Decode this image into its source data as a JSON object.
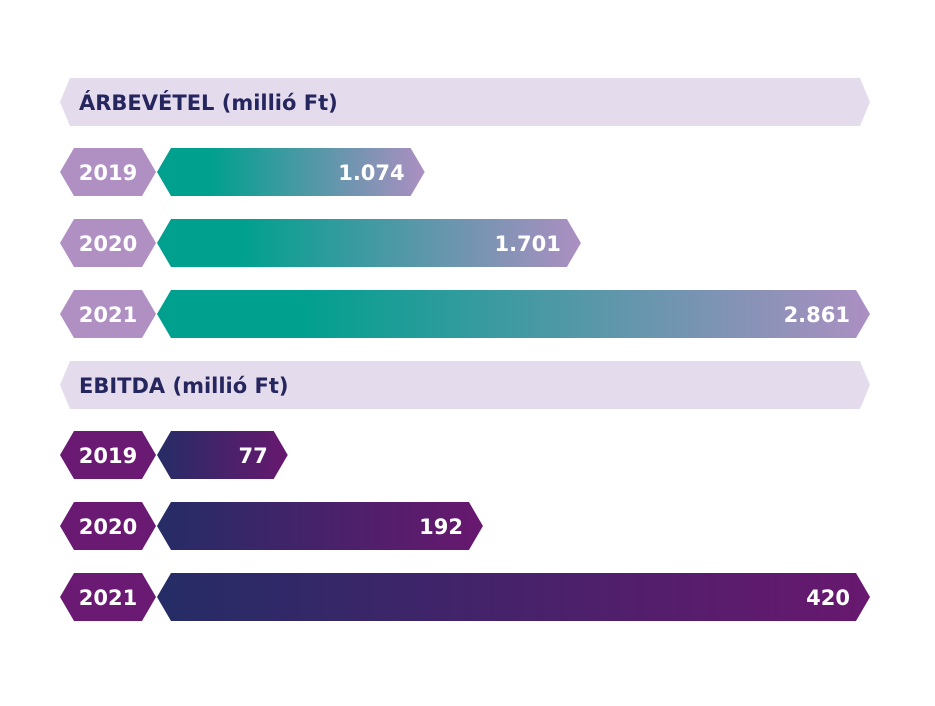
{
  "chart_data": {
    "type": "bar",
    "orientation": "horizontal",
    "title": "",
    "xlabel": "",
    "ylabel": "",
    "grid": false,
    "legend": "none",
    "panels": [
      {
        "id": "revenue",
        "title": "ÁRBEVÉTEL (millió Ft)",
        "categories": [
          "2019",
          "2020",
          "2021"
        ],
        "values": [
          1074,
          1701,
          2861
        ],
        "value_labels": [
          "1.074",
          "1.701",
          "2.861"
        ],
        "xlim": [
          0,
          2861
        ],
        "colors": {
          "header_bg": "#e4dbec",
          "header_text": "#26265f",
          "year_bg": "#b08fc3",
          "bar_start": "#00a08e",
          "bar_end": "#ac8fc2"
        }
      },
      {
        "id": "ebitda",
        "title": "EBITDA (millió Ft)",
        "categories": [
          "2019",
          "2020",
          "2021"
        ],
        "values": [
          77,
          192,
          420
        ],
        "value_labels": [
          "77",
          "192",
          "420"
        ],
        "xlim": [
          0,
          420
        ],
        "colors": {
          "header_bg": "#e4dbec",
          "header_text": "#26265f",
          "year_bg": "#6a1a73",
          "bar_start": "#252c66",
          "bar_end": "#68186f"
        }
      }
    ]
  }
}
